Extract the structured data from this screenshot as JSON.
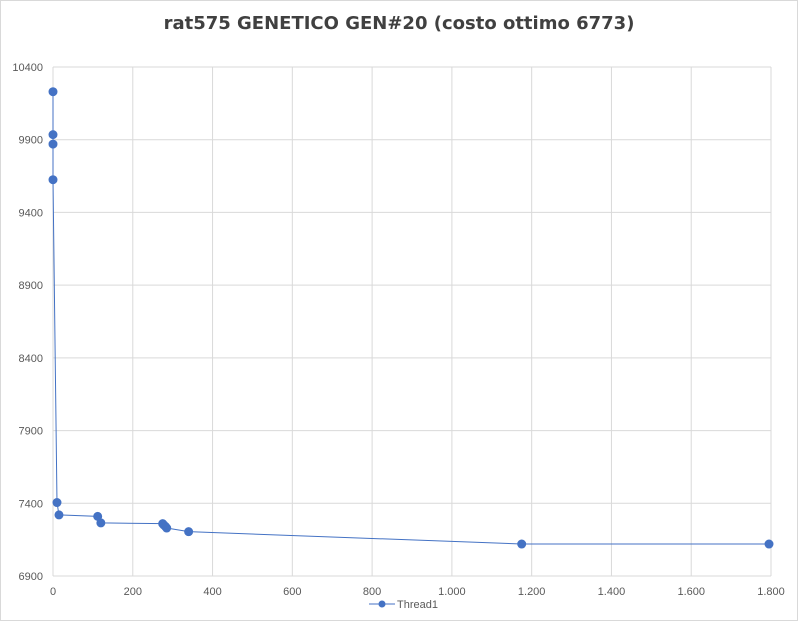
{
  "chart_data": {
    "type": "scatter",
    "title": "rat575 GENETICO GEN#20 (costo ottimo 6773)",
    "xlabel": "",
    "ylabel": "",
    "xlim": [
      0,
      1800
    ],
    "ylim": [
      6900,
      10400
    ],
    "x_ticks": [
      0,
      200,
      400,
      600,
      800,
      1000,
      1200,
      1400,
      1600,
      1800
    ],
    "x_tick_labels": [
      "0",
      "200",
      "400",
      "600",
      "800",
      "1.000",
      "1.200",
      "1.400",
      "1.600",
      "1.800"
    ],
    "y_ticks": [
      6900,
      7400,
      7900,
      8400,
      8900,
      9400,
      9900,
      10400
    ],
    "y_tick_labels": [
      "6900",
      "7400",
      "7900",
      "8400",
      "8900",
      "9400",
      "9900",
      "10400"
    ],
    "grid": true,
    "legend_position": "bottom",
    "lines_connect_points": true,
    "series": [
      {
        "name": "Thread1",
        "color": "#4472c4",
        "x": [
          0,
          0,
          0,
          0,
          10,
          15,
          112,
          120,
          275,
          278,
          282,
          285,
          340,
          1175,
          1795
        ],
        "y": [
          10230,
          9935,
          9870,
          9625,
          7405,
          7320,
          7310,
          7265,
          7260,
          7250,
          7240,
          7230,
          7205,
          7120,
          7120
        ]
      }
    ]
  }
}
